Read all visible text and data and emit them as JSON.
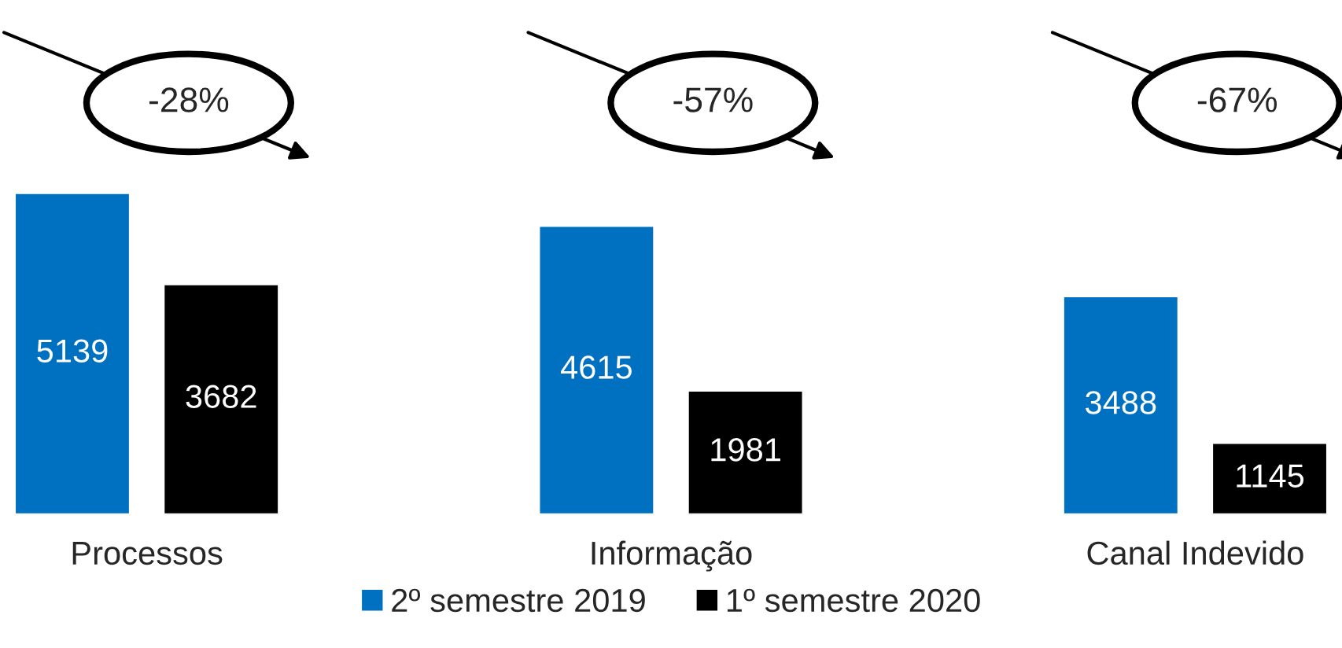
{
  "chart_data": {
    "type": "bar",
    "categories": [
      "Processos",
      "Informação",
      "Canal Indevido"
    ],
    "series": [
      {
        "name": "2º semestre 2019",
        "color": "#0070c0",
        "values": [
          5139,
          4615,
          3488
        ]
      },
      {
        "name": "1º semestre 2020",
        "color": "#000000",
        "values": [
          3682,
          1981,
          1145
        ]
      }
    ],
    "data_labels": true,
    "annotations": [
      "-28%",
      "-57%",
      "-67%"
    ],
    "legend": "bottom",
    "grid": false
  }
}
